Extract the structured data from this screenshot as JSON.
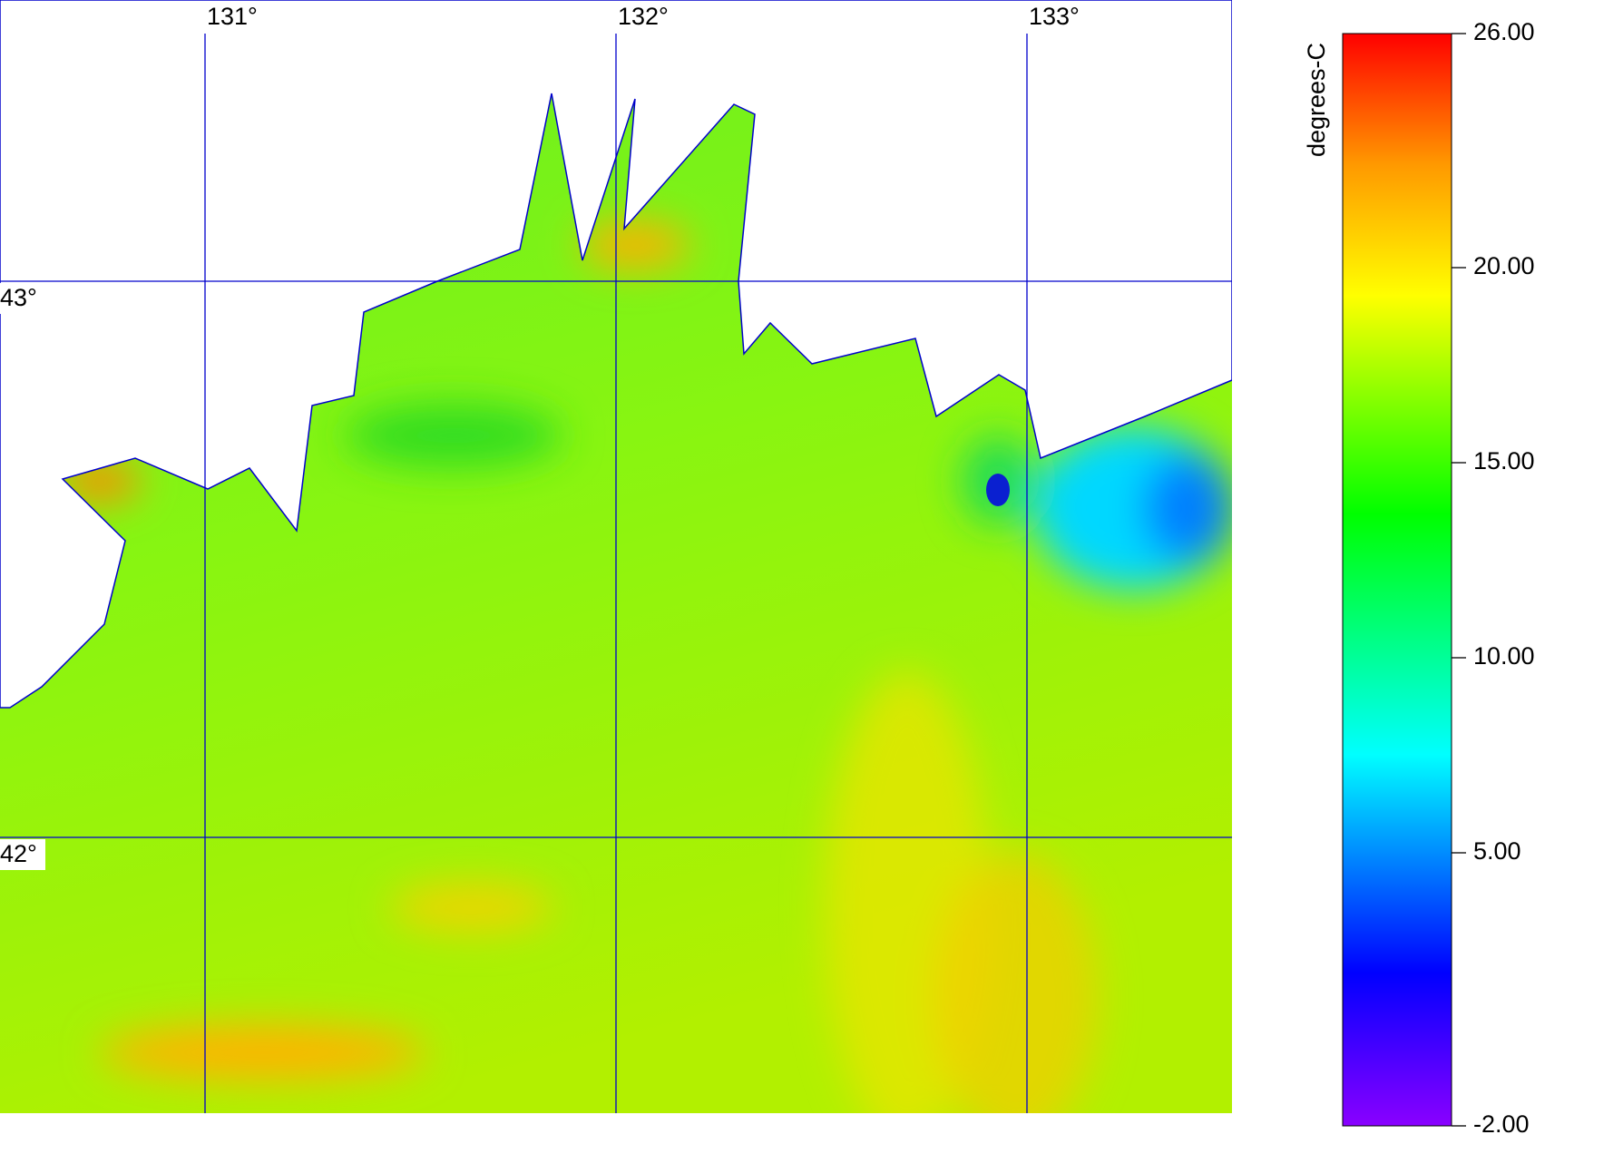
{
  "map": {
    "lon_lines": [
      {
        "value": 131,
        "label": "131°"
      },
      {
        "value": 132,
        "label": "132°"
      },
      {
        "value": 133,
        "label": "133°"
      }
    ],
    "lat_lines": [
      {
        "value": 43,
        "label": "43°"
      },
      {
        "value": 42,
        "label": "42°"
      }
    ],
    "colorbar": {
      "label": "degrees-C",
      "range": [
        -2,
        26
      ],
      "ticks": [
        {
          "value": 26,
          "label": "26.00"
        },
        {
          "value": 20,
          "label": "20.00"
        },
        {
          "value": 15,
          "label": "15.00"
        },
        {
          "value": 10,
          "label": "10.00"
        },
        {
          "value": 5,
          "label": "5.00"
        },
        {
          "value": -2,
          "label": "-2.00"
        }
      ]
    }
  }
}
